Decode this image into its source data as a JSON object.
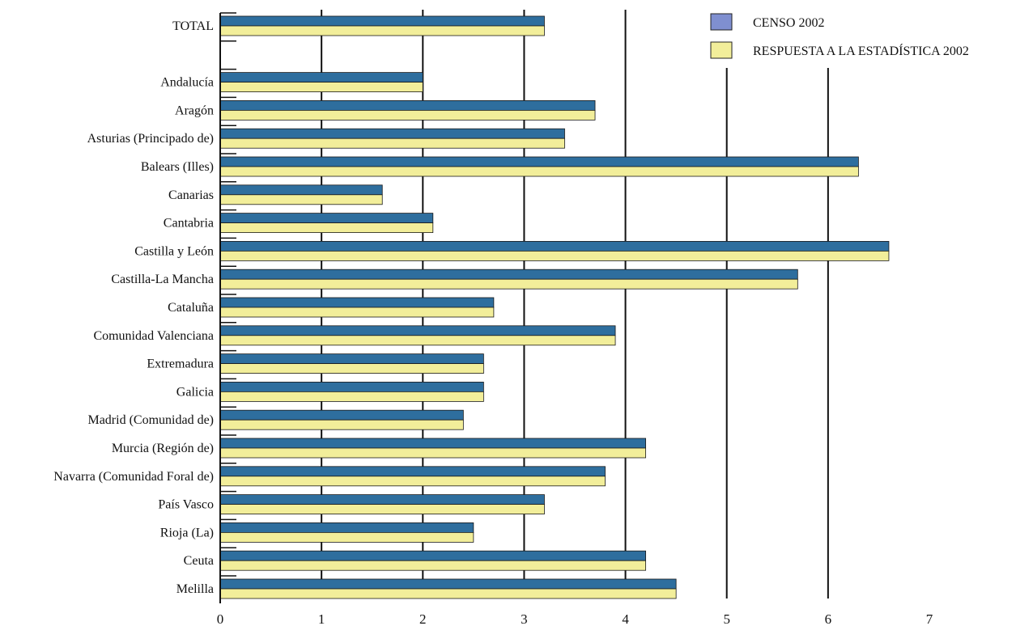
{
  "chart_data": {
    "type": "bar",
    "orientation": "horizontal",
    "title": "",
    "xlabel": "",
    "ylabel": "",
    "xlim": [
      0,
      7
    ],
    "x_ticks": [
      "0",
      "1",
      "2",
      "3",
      "4",
      "5",
      "6",
      "7"
    ],
    "grid": "vertical lines",
    "legend_position": "top-right",
    "categories": [
      "TOTAL",
      "",
      "Andalucía",
      "Aragón",
      "Asturias (Principado de)",
      "Balears (Illes)",
      "Canarias",
      "Cantabria",
      "Castilla y León",
      "Castilla-La Mancha",
      "Cataluña",
      "Comunidad Valenciana",
      "Extremadura",
      "Galicia",
      "Madrid (Comunidad de)",
      "Murcia (Región de)",
      "Navarra (Comunidad Foral de)",
      "País Vasco",
      "Rioja (La)",
      "Ceuta",
      "Melilla"
    ],
    "series": [
      {
        "name": "CENSO 2002",
        "color": "#2e6e9e",
        "legend_color": "#7f8fd0",
        "values": [
          3.2,
          null,
          2.0,
          3.7,
          3.4,
          6.3,
          1.6,
          2.1,
          6.6,
          5.7,
          2.7,
          3.9,
          2.6,
          2.6,
          2.4,
          4.2,
          3.8,
          3.2,
          2.5,
          4.2,
          4.5
        ]
      },
      {
        "name": "RESPUESTA A LA ESTADÍSTICA 2002",
        "color": "#f2ee9a",
        "legend_color": "#f2ee9a",
        "values": [
          3.2,
          null,
          2.0,
          3.7,
          3.4,
          6.3,
          1.6,
          2.1,
          6.6,
          5.7,
          2.7,
          3.9,
          2.6,
          2.6,
          2.4,
          4.2,
          3.8,
          3.2,
          2.5,
          4.2,
          4.5
        ]
      }
    ]
  }
}
